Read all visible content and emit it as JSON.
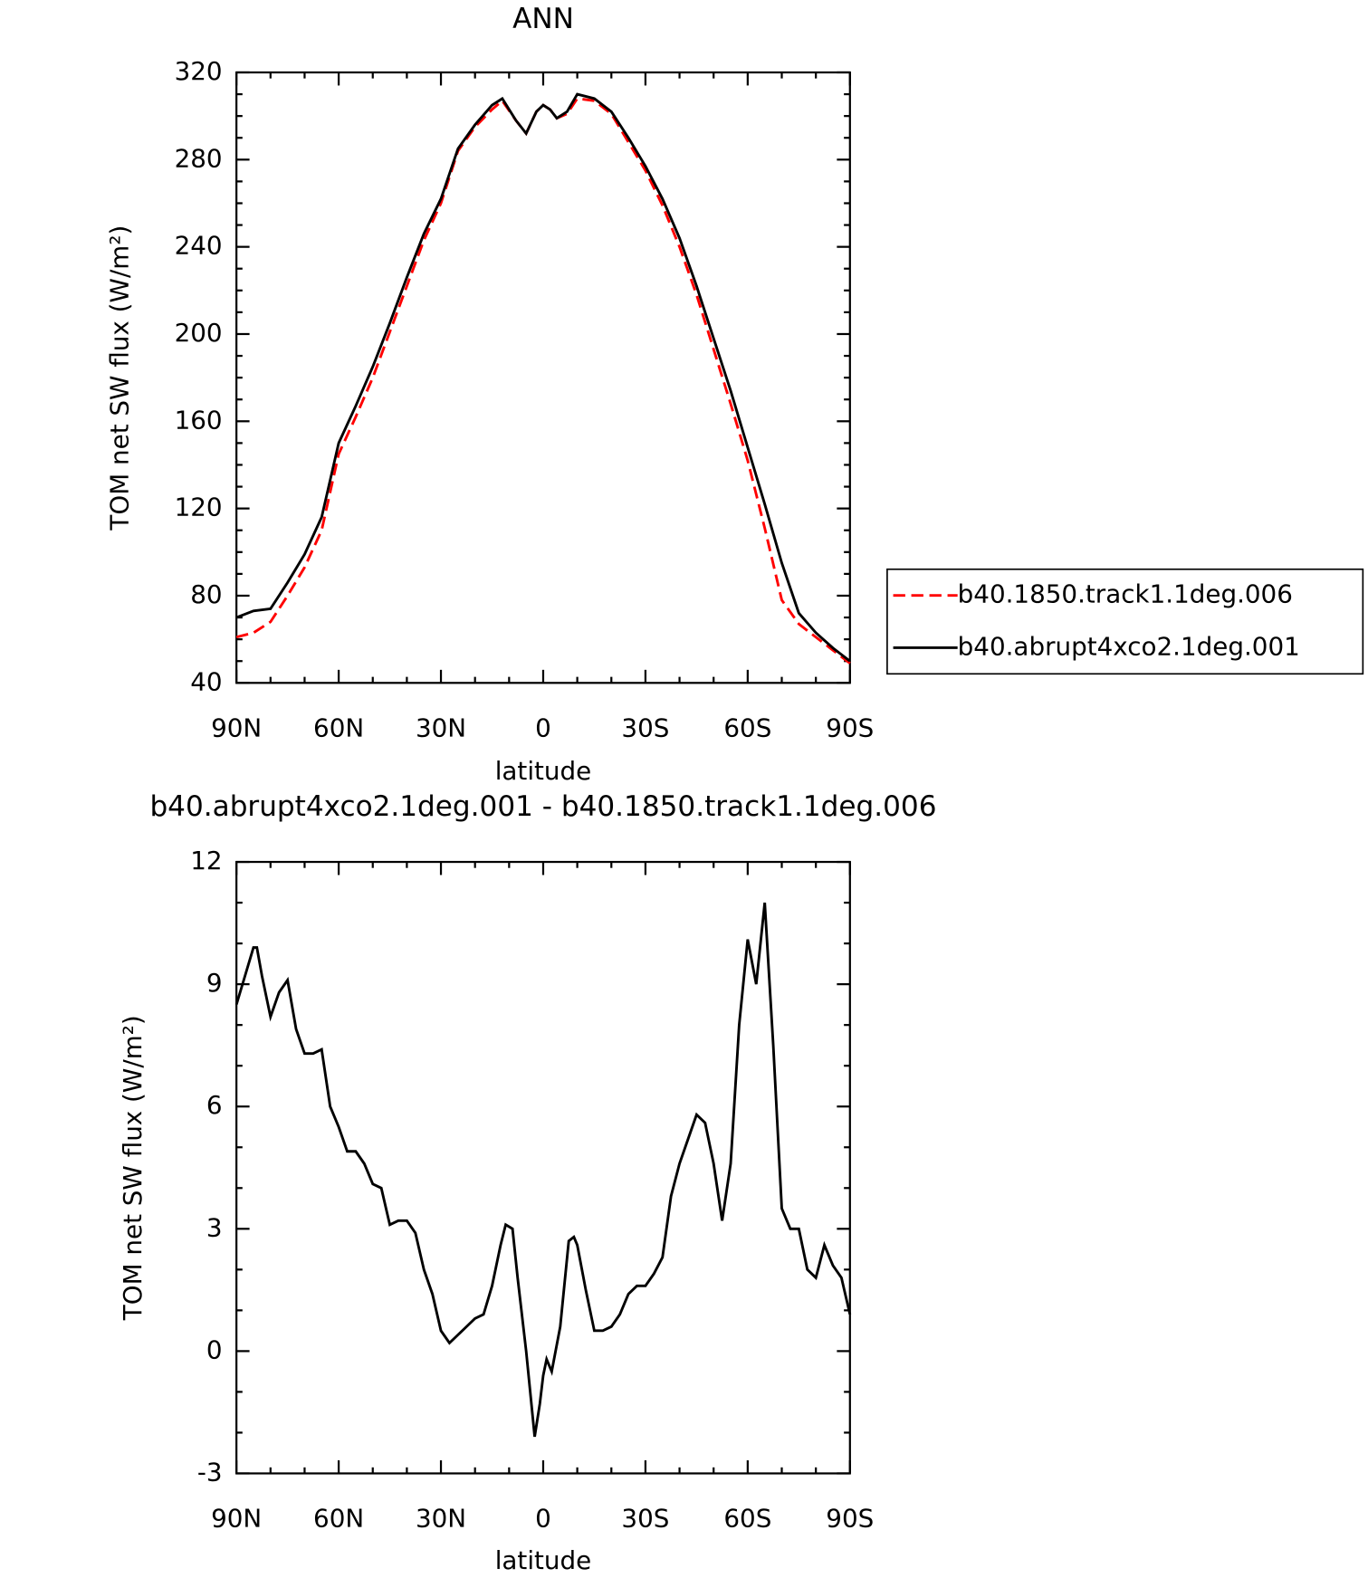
{
  "chart_data": [
    {
      "type": "line",
      "title": "ANN",
      "x_label": "latitude",
      "y_label": "TOM net SW flux (W/m²)",
      "x": [
        90,
        85,
        80,
        75,
        70,
        65,
        60,
        55,
        50,
        45,
        40,
        35,
        30,
        25,
        20,
        15,
        12,
        8,
        5,
        2,
        0,
        -2,
        -4,
        -7,
        -10,
        -15,
        -20,
        -25,
        -30,
        -35,
        -40,
        -45,
        -50,
        -55,
        -60,
        -65,
        -70,
        -75,
        -80,
        -85,
        -90
      ],
      "series": [
        {
          "name": "b40.1850.track1.1deg.006",
          "color": "#ff0000",
          "style": "dashed",
          "values": [
            61,
            63,
            68,
            80,
            93,
            110,
            145,
            162,
            180,
            201,
            222,
            243,
            260,
            284,
            295,
            303,
            307,
            298,
            292,
            302,
            305,
            303,
            299,
            301,
            308,
            307,
            301,
            288,
            275,
            259,
            240,
            218,
            193,
            168,
            142,
            111,
            78,
            67,
            61,
            55,
            49
          ]
        },
        {
          "name": "b40.abrupt4xco2.1deg.001",
          "color": "#000000",
          "style": "solid",
          "values": [
            70,
            73,
            74,
            86,
            99,
            116,
            150,
            167,
            185,
            205,
            226,
            246,
            262,
            285,
            296,
            305,
            308,
            298,
            292,
            302,
            305,
            303,
            299,
            302,
            310,
            308,
            302,
            290,
            277,
            262,
            244,
            222,
            198,
            174,
            148,
            122,
            95,
            72,
            63,
            56,
            50
          ]
        }
      ],
      "xlim": [
        90,
        -90
      ],
      "xticks": [
        {
          "value": 90,
          "label": "90N"
        },
        {
          "value": 60,
          "label": "60N"
        },
        {
          "value": 30,
          "label": "30N"
        },
        0,
        {
          "value": -30,
          "label": "30S"
        },
        {
          "value": -60,
          "label": "60S"
        },
        {
          "value": -90,
          "label": "90S"
        }
      ],
      "ylim": [
        40,
        320
      ],
      "yticks": [
        40,
        80,
        120,
        160,
        200,
        240,
        280,
        320
      ],
      "legend": "right"
    },
    {
      "type": "line",
      "title": "b40.abrupt4xco2.1deg.001 - b40.1850.track1.1deg.006",
      "x_label": "latitude",
      "y_label": "TOM net SW flux (W/m²)",
      "x": [
        90,
        87.5,
        85,
        84,
        82.5,
        80,
        77.5,
        75,
        72.5,
        70,
        67.5,
        65,
        62.5,
        60,
        57.5,
        55,
        52.5,
        50,
        47.5,
        45,
        42.5,
        40,
        37.5,
        35,
        32.5,
        30,
        27.5,
        25,
        22.5,
        20,
        17.5,
        15,
        12.5,
        11,
        9,
        7.5,
        5,
        2.5,
        1,
        0,
        -1,
        -2.5,
        -5,
        -7.5,
        -9,
        -10,
        -12.5,
        -15,
        -17.5,
        -20,
        -22.5,
        -25,
        -27.5,
        -30,
        -32.5,
        -35,
        -37.5,
        -40,
        -42.5,
        -45,
        -47.5,
        -50,
        -52.5,
        -55,
        -57.5,
        -60,
        -62.5,
        -65,
        -67.5,
        -70,
        -72.5,
        -75,
        -77.5,
        -80,
        -82.5,
        -85,
        -87.5,
        -90
      ],
      "series": [
        {
          "color": "#000000",
          "style": "solid",
          "values": [
            8.5,
            9.2,
            9.9,
            9.9,
            9.2,
            8.2,
            8.8,
            9.1,
            7.9,
            7.3,
            7.3,
            7.4,
            6.0,
            5.5,
            4.9,
            4.9,
            4.6,
            4.1,
            4.0,
            3.1,
            3.2,
            3.2,
            2.9,
            2.0,
            1.4,
            0.5,
            0.2,
            0.4,
            0.6,
            0.8,
            0.9,
            1.6,
            2.6,
            3.1,
            3.0,
            1.8,
            0.0,
            -2.1,
            -1.3,
            -0.6,
            -0.2,
            -0.5,
            0.6,
            2.7,
            2.8,
            2.6,
            1.5,
            0.5,
            0.5,
            0.6,
            0.9,
            1.4,
            1.6,
            1.6,
            1.9,
            2.3,
            3.8,
            4.6,
            5.2,
            5.8,
            5.6,
            4.6,
            3.2,
            4.6,
            8.0,
            10.1,
            9.0,
            11.0,
            7.5,
            3.5,
            3.0,
            3.0,
            2.0,
            1.8,
            2.6,
            2.1,
            1.8,
            0.9
          ]
        }
      ],
      "xlim": [
        90,
        -90
      ],
      "xticks": [
        {
          "value": 90,
          "label": "90N"
        },
        {
          "value": 60,
          "label": "60N"
        },
        {
          "value": 30,
          "label": "30N"
        },
        0,
        {
          "value": -30,
          "label": "30S"
        },
        {
          "value": -60,
          "label": "60S"
        },
        {
          "value": -90,
          "label": "90S"
        }
      ],
      "ylim": [
        -3,
        12
      ],
      "yticks": [
        -3,
        0,
        3,
        6,
        9,
        12
      ]
    }
  ]
}
